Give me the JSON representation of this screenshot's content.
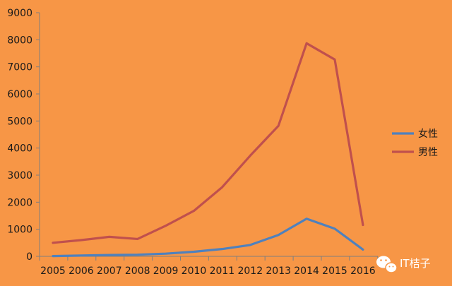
{
  "chart_data": {
    "type": "line",
    "x": [
      "2005",
      "2006",
      "2007",
      "2008",
      "2009",
      "2010",
      "2011",
      "2012",
      "2013",
      "2014",
      "2015",
      "2016"
    ],
    "series": [
      {
        "name": "女性",
        "color": "#4F81BD",
        "values": [
          10,
          30,
          50,
          60,
          100,
          170,
          270,
          420,
          790,
          1390,
          1020,
          250
        ]
      },
      {
        "name": "男性",
        "color": "#C0504D",
        "values": [
          500,
          600,
          720,
          640,
          1130,
          1680,
          2550,
          3720,
          4820,
          7870,
          7270,
          1160
        ]
      }
    ],
    "yticks": [
      "0",
      "1000",
      "2000",
      "3000",
      "4000",
      "5000",
      "6000",
      "7000",
      "8000",
      "9000"
    ],
    "ylim": [
      0,
      9000
    ],
    "legend_position": "right",
    "grid": false,
    "title": "",
    "xlabel": "",
    "ylabel": ""
  },
  "watermark": {
    "text": "IT桔子",
    "icon": "wechat-icon"
  }
}
